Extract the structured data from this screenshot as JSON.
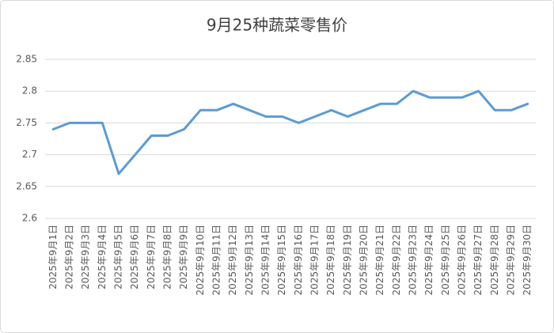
{
  "chart_data": {
    "type": "line",
    "title": "9月25种蔬菜零售价",
    "categories": [
      "2025年9月1日",
      "2025年9月2日",
      "2025年9月3日",
      "2025年9月4日",
      "2025年9月5日",
      "2025年9月6日",
      "2025年9月7日",
      "2025年9月8日",
      "2025年9月9日",
      "2025年9月10日",
      "2025年9月11日",
      "2025年9月12日",
      "2025年9月13日",
      "2025年9月14日",
      "2025年9月15日",
      "2025年9月16日",
      "2025年9月17日",
      "2025年9月18日",
      "2025年9月19日",
      "2025年9月20日",
      "2025年9月21日",
      "2025年9月22日",
      "2025年9月23日",
      "2025年9月24日",
      "2025年9月25日",
      "2025年9月26日",
      "2025年9月27日",
      "2025年9月28日",
      "2025年9月29日",
      "2025年9月30日"
    ],
    "values": [
      2.74,
      2.75,
      2.75,
      2.75,
      2.67,
      2.7,
      2.73,
      2.73,
      2.74,
      2.77,
      2.77,
      2.78,
      2.77,
      2.76,
      2.76,
      2.75,
      2.76,
      2.77,
      2.76,
      2.77,
      2.78,
      2.78,
      2.8,
      2.79,
      2.79,
      2.79,
      2.8,
      2.77,
      2.77,
      2.78
    ],
    "color": "#5b9bd5",
    "ylim": [
      2.6,
      2.85
    ],
    "yticks": [
      2.6,
      2.65,
      2.7,
      2.75,
      2.8,
      2.85
    ],
    "grid": true
  }
}
